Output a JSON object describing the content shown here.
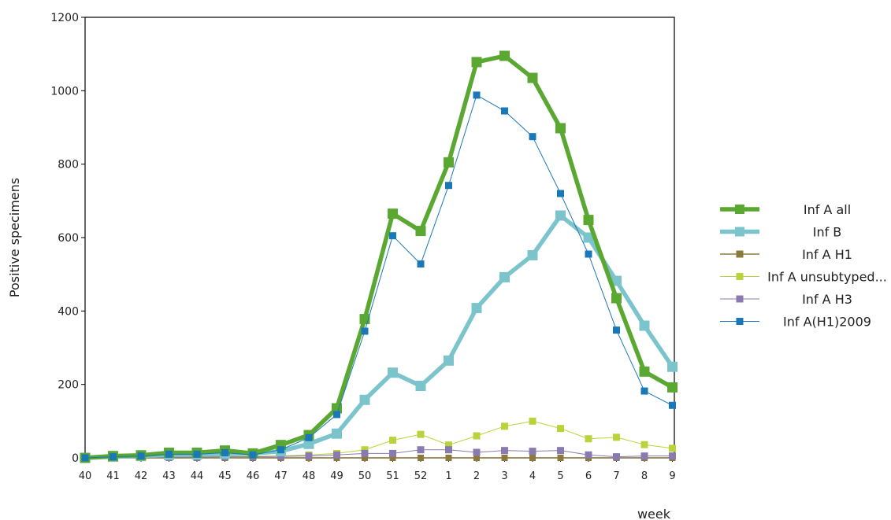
{
  "chart_data": {
    "type": "line",
    "title": "",
    "xlabel": "week",
    "ylabel": "Positive specimens",
    "ylim": [
      0,
      1200
    ],
    "yticks": [
      "0",
      "200",
      "400",
      "600",
      "800",
      "1000",
      "1200"
    ],
    "categories": [
      "40",
      "41",
      "42",
      "43",
      "44",
      "45",
      "46",
      "47",
      "48",
      "49",
      "50",
      "51",
      "52",
      "1",
      "2",
      "3",
      "4",
      "5",
      "6",
      "7",
      "8",
      "9"
    ],
    "legend_position": "right",
    "grid": false,
    "series": [
      {
        "name": "Inf A all",
        "color": "#5aa832",
        "values": [
          0,
          5,
          7,
          14,
          14,
          20,
          12,
          35,
          62,
          135,
          378,
          665,
          618,
          805,
          1078,
          1095,
          1035,
          898,
          648,
          435,
          235,
          192
        ]
      },
      {
        "name": "Inf B",
        "color": "#7cc4cc",
        "values": [
          0,
          3,
          5,
          8,
          9,
          11,
          12,
          18,
          38,
          66,
          158,
          232,
          196,
          265,
          408,
          492,
          552,
          660,
          600,
          482,
          360,
          248
        ]
      },
      {
        "name": "Inf A H1",
        "color": "#8c7a3c",
        "values": [
          0,
          0,
          0,
          0,
          0,
          0,
          0,
          0,
          0,
          0,
          0,
          0,
          0,
          0,
          0,
          0,
          0,
          0,
          0,
          0,
          0,
          0
        ]
      },
      {
        "name": "Inf A unsubtyped...",
        "color": "#b9d43b",
        "values": [
          0,
          1,
          2,
          3,
          3,
          4,
          4,
          5,
          8,
          12,
          22,
          48,
          64,
          35,
          60,
          86,
          100,
          80,
          52,
          56,
          36,
          26
        ]
      },
      {
        "name": "Inf A H3",
        "color": "#8a7ab0",
        "values": [
          0,
          1,
          1,
          2,
          2,
          3,
          3,
          4,
          5,
          8,
          12,
          12,
          22,
          22,
          15,
          20,
          18,
          20,
          8,
          3,
          5,
          5
        ]
      },
      {
        "name": "Inf A(H1)2009",
        "color": "#1a78b8",
        "values": [
          0,
          3,
          5,
          10,
          10,
          14,
          8,
          22,
          55,
          118,
          345,
          605,
          528,
          742,
          988,
          945,
          875,
          720,
          555,
          348,
          182,
          143
        ]
      }
    ]
  }
}
